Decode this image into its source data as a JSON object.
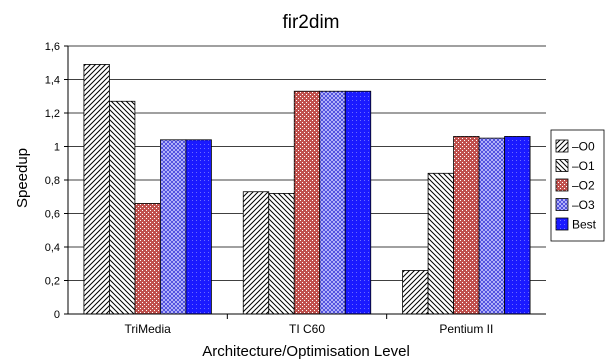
{
  "chart_data": {
    "type": "bar",
    "title": "fir2dim",
    "xlabel": "Architecture/Optimisation Level",
    "ylabel": "Speedup",
    "ylim": [
      0,
      1.6
    ],
    "yticks": [
      "0",
      "0,2",
      "0,4",
      "0,6",
      "0,8",
      "1",
      "1,2",
      "1,4",
      "1,6"
    ],
    "grid": true,
    "legend_position": "right",
    "categories": [
      "TriMedia",
      "TI C60",
      "Pentium II"
    ],
    "series": [
      {
        "name": "–O0",
        "pattern": "hatch-fwd",
        "color": "#ffffff",
        "values": [
          1.49,
          0.73,
          0.26
        ]
      },
      {
        "name": "–O1",
        "pattern": "hatch-back",
        "color": "#ffffff",
        "values": [
          1.27,
          0.72,
          0.84
        ]
      },
      {
        "name": "–O2",
        "pattern": "dots-red",
        "color": "#c0504d",
        "values": [
          0.66,
          1.33,
          1.06
        ]
      },
      {
        "name": "–O3",
        "pattern": "grid-blue",
        "color": "#5c5cd6",
        "values": [
          1.04,
          1.33,
          1.05
        ]
      },
      {
        "name": "Best",
        "pattern": "solid-blue",
        "color": "#1a1aff",
        "values": [
          1.04,
          1.33,
          1.06
        ]
      }
    ]
  }
}
